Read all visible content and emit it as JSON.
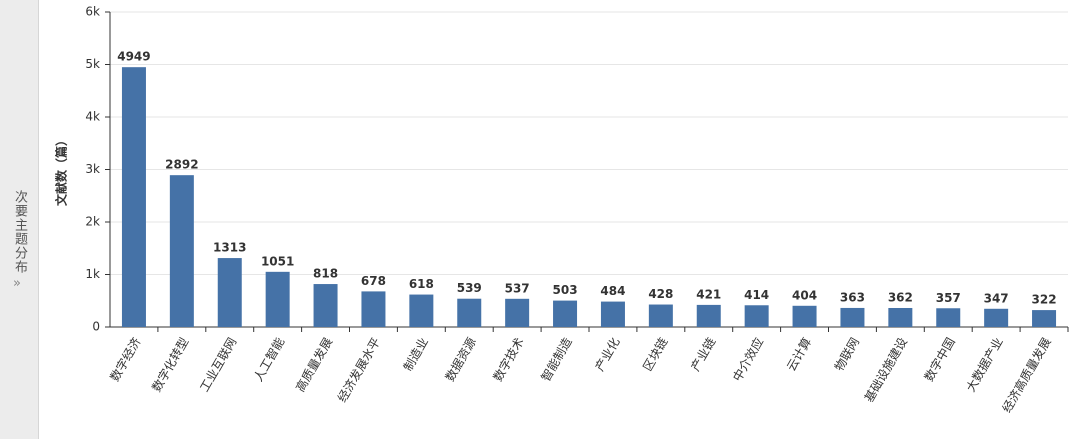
{
  "sidebar_label": "次要主题分布",
  "chart_data": {
    "type": "bar",
    "y_label": "文献数（篇）",
    "categories": [
      "数字经济",
      "数字化转型",
      "工业互联网",
      "人工智能",
      "高质量发展",
      "经济发展水平",
      "制造业",
      "数据资源",
      "数字技术",
      "智能制造",
      "产业化",
      "区块链",
      "产业链",
      "中介效应",
      "云计算",
      "物联网",
      "基础设施建设",
      "数字中国",
      "大数据产业",
      "经济高质量发展"
    ],
    "values": [
      4949,
      2892,
      1313,
      1051,
      818,
      678,
      618,
      539,
      537,
      503,
      484,
      428,
      421,
      414,
      404,
      363,
      362,
      357,
      347,
      322
    ],
    "color": "#4572a7",
    "ylim": [
      0,
      6000
    ],
    "yticks": [
      0,
      {
        "value": 1000,
        "label": "1k"
      },
      {
        "value": 2000,
        "label": "2k"
      },
      {
        "value": 3000,
        "label": "3k"
      },
      {
        "value": 4000,
        "label": "4k"
      },
      {
        "value": 5000,
        "label": "5k"
      },
      {
        "value": 6000,
        "label": "6k"
      }
    ],
    "grid": true
  }
}
